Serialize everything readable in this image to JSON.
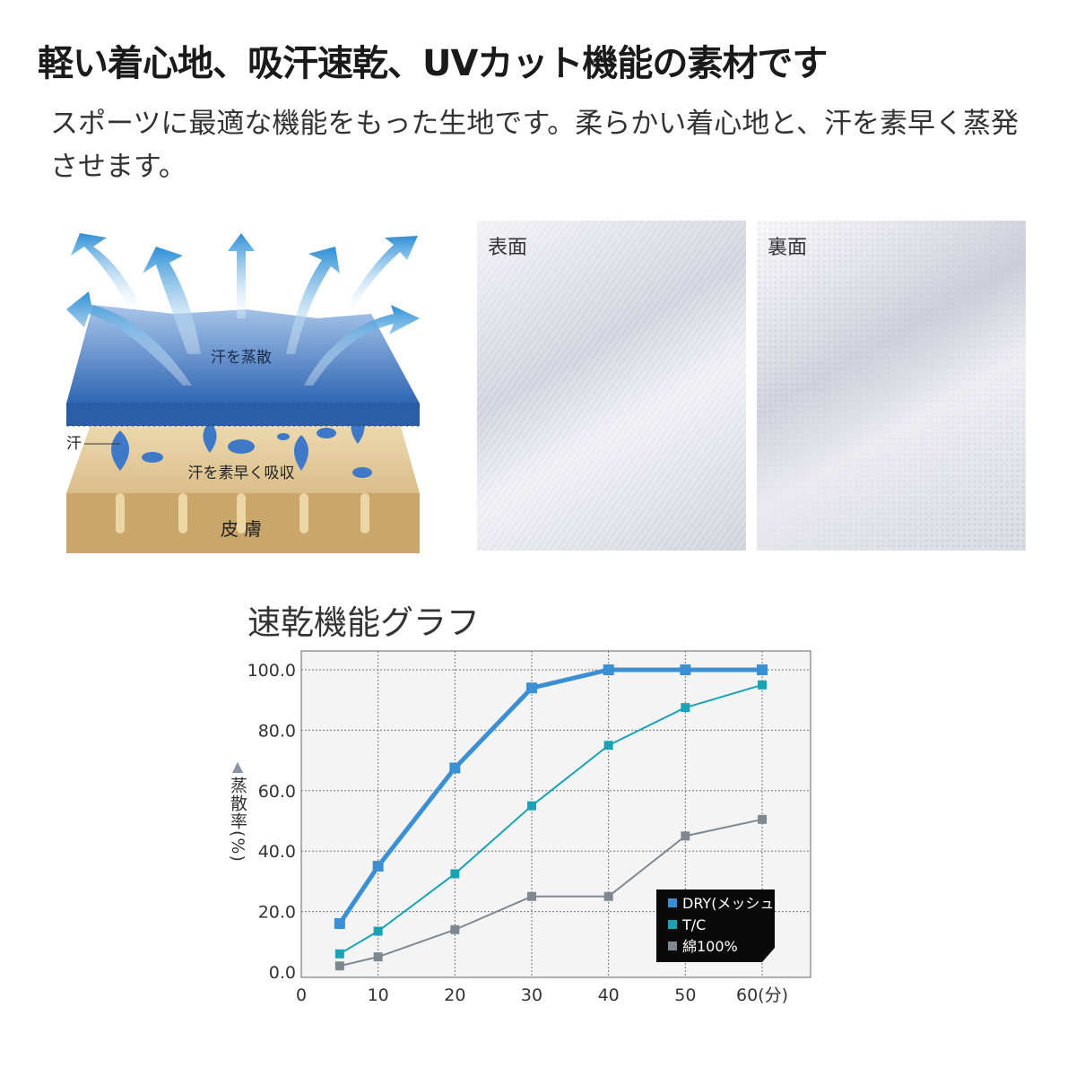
{
  "headline": "軽い着心地、吸汗速乾、UVカット機能の素材です",
  "description": "スポーツに最適な機能をもった生地です。柔らかい着心地と、汗を素早く蒸発させます。",
  "diagram": {
    "evaporate_label": "汗を蒸散",
    "sweat_label": "汗",
    "absorb_label": "汗を素早く吸収",
    "skin_label": "皮 膚"
  },
  "fabric_photos": {
    "front_label": "表面",
    "back_label": "裏面"
  },
  "colors": {
    "dry": "#3b8fd4",
    "tc": "#1aa3b5",
    "cotton": "#7f8891"
  },
  "chart_data": {
    "type": "line",
    "title": "速乾機能グラフ",
    "ylabel": "蒸散率(%)",
    "xunit": "(分)",
    "x": [
      5,
      10,
      20,
      30,
      40,
      50,
      60
    ],
    "xticks": [
      "0",
      "10",
      "20",
      "30",
      "40",
      "50",
      "60"
    ],
    "yticks": [
      "0.0",
      "20.0",
      "40.0",
      "60.0",
      "80.0",
      "100.0"
    ],
    "xlim": [
      0,
      65
    ],
    "ylim": [
      0,
      100
    ],
    "grid": true,
    "legend_position": "bottom-right",
    "series": [
      {
        "name": "DRY(メッシュ)",
        "values": [
          16,
          35,
          67.5,
          94,
          100,
          100,
          100
        ]
      },
      {
        "name": "T/C",
        "values": [
          6,
          13.5,
          32.5,
          55,
          75,
          87.5,
          95
        ]
      },
      {
        "name": "綿100%",
        "values": [
          2,
          5,
          14,
          25,
          25,
          45,
          50.5
        ]
      }
    ]
  }
}
